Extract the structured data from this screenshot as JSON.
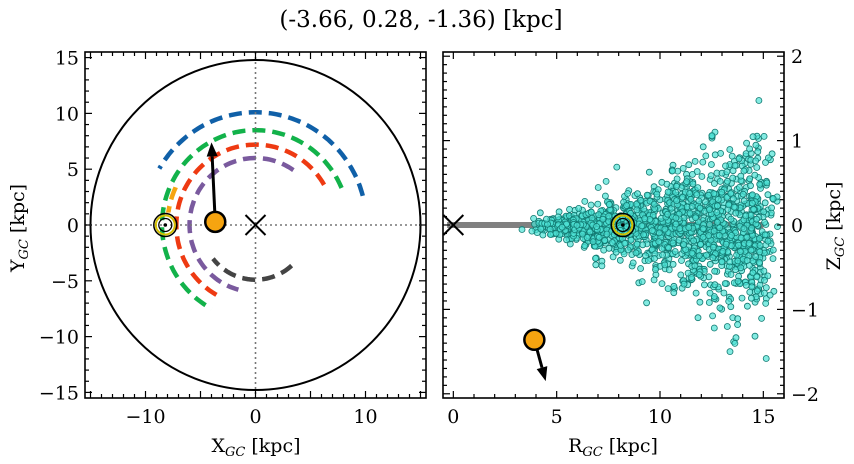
{
  "title": "(-3.66, 0.28, -1.36) [kpc]",
  "colors": {
    "blue": "#1060a8",
    "green": "#12b24a",
    "red": "#ee3a12",
    "purple": "#7a5a9e",
    "dark": "#444444",
    "orange": "#f6a410",
    "scatter_fill": "#4fe2d6",
    "scatter_edge": "#127a72",
    "ring": "#d4c000",
    "plane": "#808080"
  },
  "chart_data": [
    {
      "type": "line",
      "panel": "left",
      "xlabel": "X",
      "xlabel_sub": "GC",
      "xlabel_unit": " [kpc]",
      "ylabel": "Y",
      "ylabel_sub": "GC",
      "ylabel_unit": " [kpc]",
      "xlim": [
        -15.5,
        15.5
      ],
      "ylim": [
        -15.5,
        15.5
      ],
      "xticks": [
        -10,
        0,
        10
      ],
      "xtick_labels": [
        "−10",
        "0",
        "10"
      ],
      "yticks": [
        15,
        10,
        5,
        0,
        -5,
        -10,
        -15
      ],
      "ytick_labels": [
        "15",
        "10",
        "5",
        "0",
        "−5",
        "−10",
        "−15"
      ],
      "galaxy_radius": 15,
      "center_marker": [
        0,
        0
      ],
      "sun": [
        -8.2,
        0
      ],
      "star": [
        -3.66,
        0.28
      ],
      "proper_motion_arrow": {
        "from": [
          -3.66,
          0.28
        ],
        "to": [
          -4.0,
          7.4
        ]
      },
      "arms": [
        {
          "color": "blue",
          "radius": 10.1,
          "start_deg": 15,
          "end_deg": 150
        },
        {
          "color": "green",
          "radius": 8.5,
          "start_deg": 23,
          "end_deg": 242
        },
        {
          "color": "red",
          "radius": 7.2,
          "start_deg": 30,
          "end_deg": 245
        },
        {
          "color": "purple",
          "radius": 6.0,
          "start_deg": 55,
          "end_deg": 255
        },
        {
          "color": "dark",
          "radius": 4.9,
          "start_deg": -48,
          "end_deg": -142
        },
        {
          "color": "orange",
          "radius": 8.0,
          "start_deg": 155,
          "end_deg": 172
        }
      ]
    },
    {
      "type": "scatter",
      "panel": "right",
      "xlabel": "R",
      "xlabel_sub": "GC",
      "xlabel_unit": " [kpc]",
      "ylabel": "Z",
      "ylabel_sub": "GC",
      "ylabel_unit": " [kpc]",
      "xlim": [
        -0.5,
        16
      ],
      "ylim": [
        -2.05,
        2.05
      ],
      "xticks": [
        0,
        5,
        10,
        15
      ],
      "xtick_labels": [
        "0",
        "5",
        "10",
        "15"
      ],
      "yticks": [
        2,
        1,
        0,
        -1,
        -2
      ],
      "ytick_labels": [
        "2",
        "1",
        "0",
        "−1",
        "−2"
      ],
      "galactic_plane": {
        "xmin": -0.3,
        "xmax": 15,
        "z": 0
      },
      "center_marker": [
        0,
        0
      ],
      "sun": [
        8.2,
        0
      ],
      "star": [
        3.92,
        -1.36
      ],
      "proper_motion_arrow": {
        "from": [
          3.92,
          -1.36
        ],
        "to": [
          4.47,
          -1.85
        ]
      },
      "scatter_count": 1600
    }
  ]
}
